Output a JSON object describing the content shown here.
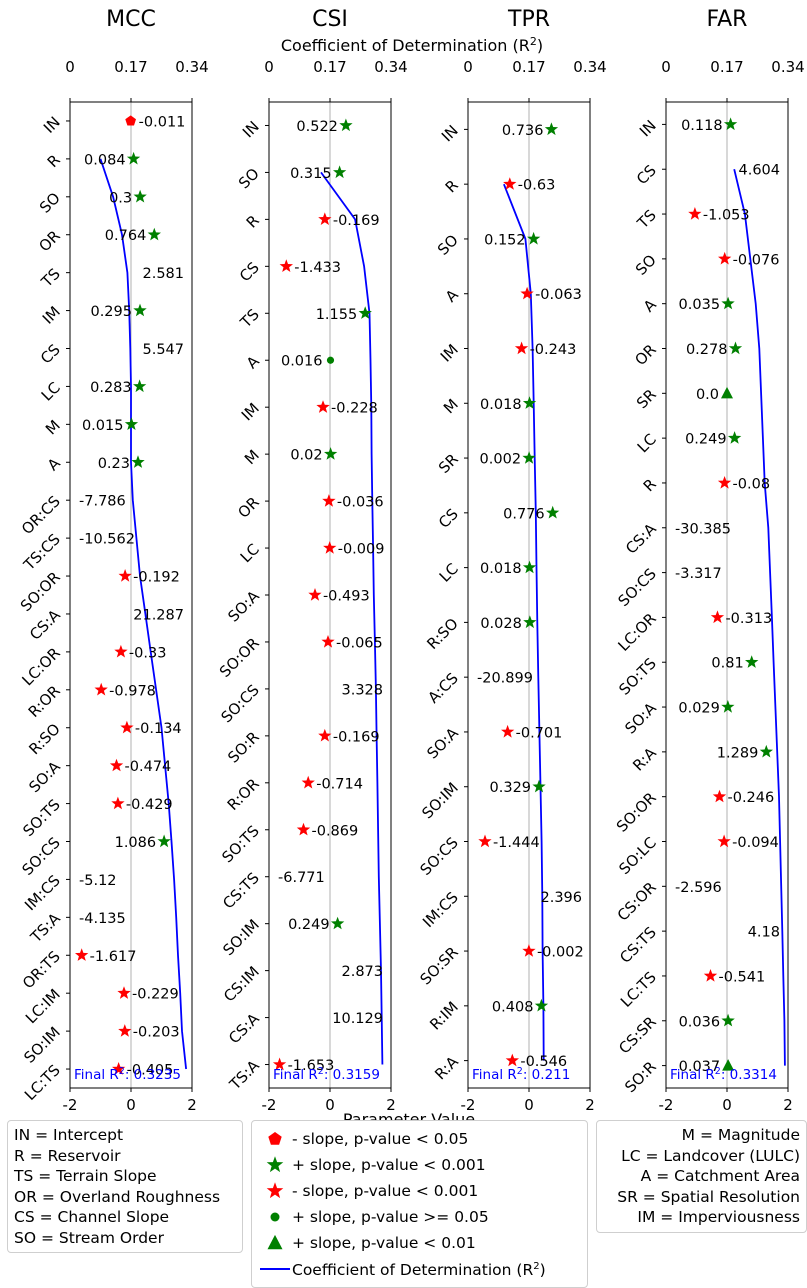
{
  "colors": {
    "line": "#0000ff",
    "pos": "#008000",
    "neg": "#ff0000",
    "grid": "#b0b0b0"
  },
  "chart_data": {
    "type": "scatter",
    "top_axis_label": "Coefficient of Determination (R²)",
    "top_axis_ticks": [
      "0",
      "0.17",
      "0.34"
    ],
    "top_axis_range": [
      0,
      0.34
    ],
    "bottom_axis_label": "Parameter Value",
    "bottom_axis_ticks": [
      "-2",
      "0",
      "2"
    ],
    "bottom_axis_range": [
      -2,
      2
    ],
    "panels": [
      {
        "title": "MCC",
        "final_r2_label": "Final R²: 0.3235",
        "terms": [
          "IN",
          "R",
          "SO",
          "OR",
          "TS",
          "IM",
          "CS",
          "LC",
          "M",
          "A",
          "OR:CS",
          "TS:CS",
          "SO:OR",
          "CS:A",
          "LC:OR",
          "R:OR",
          "R:SO",
          "SO:A",
          "SO:TS",
          "SO:CS",
          "IM:CS",
          "TS:A",
          "OR:TS",
          "LC:IM",
          "SO:IM",
          "LC:TS"
        ],
        "values": [
          -0.011,
          0.084,
          0.3,
          0.764,
          2.581,
          0.295,
          5.547,
          0.283,
          0.015,
          0.23,
          -7.786,
          -10.562,
          -0.192,
          21.287,
          -0.33,
          -0.978,
          -0.134,
          -0.474,
          -0.429,
          1.086,
          -5.12,
          -4.135,
          -1.617,
          -0.229,
          -0.203,
          -0.405
        ],
        "value_labels": [
          "-0.011",
          "0.084",
          "0.3",
          "0.764",
          "2.581",
          "0.295",
          "5.547",
          "0.283",
          "0.015",
          "0.23",
          "-7.786",
          "-10.562",
          "-0.192",
          "21.287",
          "-0.33",
          "-0.978",
          "-0.134",
          "-0.474",
          "-0.429",
          "1.086",
          "-5.12",
          "-4.135",
          "-1.617",
          "-0.229",
          "-0.203",
          "-0.405"
        ],
        "markers": [
          "neg_pentagon",
          "pos_star",
          "pos_star",
          "pos_star",
          "none",
          "pos_star",
          "none",
          "pos_star",
          "pos_star",
          "pos_star",
          "none",
          "none",
          "neg_star",
          "none",
          "neg_star",
          "neg_star",
          "neg_star",
          "neg_star",
          "neg_star",
          "pos_star",
          "none",
          "none",
          "neg_star",
          "neg_star",
          "neg_star",
          "neg_star"
        ],
        "r2": [
          null,
          0.085,
          0.12,
          0.145,
          0.16,
          0.165,
          0.168,
          0.17,
          0.17,
          0.17,
          0.175,
          0.185,
          0.195,
          0.21,
          0.225,
          0.24,
          0.255,
          0.265,
          0.275,
          0.283,
          0.29,
          0.296,
          0.301,
          0.307,
          0.312,
          0.3235
        ]
      },
      {
        "title": "CSI",
        "final_r2_label": "Final R²: 0.3159",
        "terms": [
          "IN",
          "SO",
          "R",
          "CS",
          "TS",
          "A",
          "IM",
          "M",
          "OR",
          "LC",
          "SO:A",
          "SO:OR",
          "SO:CS",
          "SO:R",
          "R:OR",
          "SO:TS",
          "CS:TS",
          "SO:IM",
          "CS:IM",
          "CS:A",
          "TS:A"
        ],
        "values": [
          0.522,
          0.315,
          -0.169,
          -1.433,
          1.155,
          0.016,
          -0.228,
          0.02,
          -0.036,
          -0.009,
          -0.493,
          -0.065,
          3.328,
          -0.169,
          -0.714,
          -0.869,
          -6.771,
          0.249,
          2.873,
          10.129,
          -1.653
        ],
        "value_labels": [
          "0.522",
          "0.315",
          "-0.169",
          "-1.433",
          "1.155",
          "0.016",
          "-0.228",
          "0.02",
          "-0.036",
          "-0.009",
          "-0.493",
          "-0.065",
          "3.328",
          "-0.169",
          "-0.714",
          "-0.869",
          "-6.771",
          "0.249",
          "2.873",
          "10.129",
          "-1.653"
        ],
        "markers": [
          "pos_star",
          "pos_star",
          "neg_star",
          "neg_star",
          "pos_star",
          "pos_circle",
          "neg_star",
          "pos_star",
          "neg_star",
          "neg_star",
          "neg_star",
          "neg_star",
          "none",
          "neg_star",
          "neg_star",
          "neg_star",
          "none",
          "pos_star",
          "none",
          "none",
          "neg_star"
        ],
        "r2": [
          null,
          0.145,
          0.24,
          0.265,
          0.28,
          0.283,
          0.285,
          0.286,
          0.288,
          0.29,
          0.292,
          0.295,
          0.298,
          0.3,
          0.302,
          0.304,
          0.306,
          0.309,
          0.312,
          0.314,
          0.3159
        ]
      },
      {
        "title": "TPR",
        "final_r2_label": "Final R²: 0.211",
        "terms": [
          "IN",
          "R",
          "SO",
          "A",
          "IM",
          "M",
          "SR",
          "CS",
          "LC",
          "R:SO",
          "A:CS",
          "SO:A",
          "SO:IM",
          "SO:CS",
          "IM:CS",
          "SO:SR",
          "R:IM",
          "R:A"
        ],
        "values": [
          0.736,
          -0.63,
          0.152,
          -0.063,
          -0.243,
          0.018,
          0.002,
          0.776,
          0.018,
          0.028,
          -20.899,
          -0.701,
          0.329,
          -1.444,
          2.396,
          -0.002,
          0.408,
          -0.546
        ],
        "value_labels": [
          "0.736",
          "-0.63",
          "0.152",
          "-0.063",
          "-0.243",
          "0.018",
          "0.002",
          "0.776",
          "0.018",
          "0.028",
          "-20.899",
          "-0.701",
          "0.329",
          "-1.444",
          "2.396",
          "-0.002",
          "0.408",
          "-0.546"
        ],
        "markers": [
          "pos_star",
          "neg_star",
          "pos_star",
          "neg_star",
          "neg_star",
          "pos_star",
          "pos_star",
          "pos_star",
          "pos_star",
          "pos_star",
          "none",
          "neg_star",
          "pos_star",
          "neg_star",
          "none",
          "neg_star",
          "pos_star",
          "neg_star"
        ],
        "r2": [
          null,
          0.1,
          0.16,
          0.175,
          0.18,
          0.183,
          0.186,
          0.189,
          0.191,
          0.193,
          0.196,
          0.199,
          0.202,
          0.205,
          0.207,
          0.208,
          0.21,
          0.211
        ]
      },
      {
        "title": "FAR",
        "final_r2_label": "Final R²: 0.3314",
        "terms": [
          "IN",
          "CS",
          "TS",
          "SO",
          "A",
          "OR",
          "SR",
          "LC",
          "R",
          "CS:A",
          "SO:CS",
          "LC:OR",
          "SO:TS",
          "SO:A",
          "R:A",
          "SO:OR",
          "SO:LC",
          "CS:OR",
          "CS:TS",
          "LC:TS",
          "CS:SR",
          "SO:R"
        ],
        "values": [
          0.118,
          4.604,
          -1.053,
          -0.076,
          0.035,
          0.278,
          0.0,
          0.249,
          -0.08,
          -30.385,
          -3.317,
          -0.313,
          0.81,
          0.029,
          1.289,
          -0.246,
          -0.094,
          -2.596,
          4.18,
          -0.541,
          0.036,
          0.037
        ],
        "value_labels": [
          "0.118",
          "4.604",
          "-1.053",
          "-0.076",
          "0.035",
          "0.278",
          "0.0",
          "0.249",
          "-0.08",
          "-30.385",
          "-3.317",
          "-0.313",
          "0.81",
          "0.029",
          "1.289",
          "-0.246",
          "-0.094",
          "-2.596",
          "4.18",
          "-0.541",
          "0.036",
          "0.037"
        ],
        "markers": [
          "pos_star",
          "none",
          "neg_star",
          "neg_star",
          "pos_star",
          "pos_star",
          "pos_triangle",
          "pos_star",
          "neg_star",
          "none",
          "none",
          "neg_star",
          "pos_star",
          "pos_star",
          "pos_star",
          "neg_star",
          "neg_star",
          "none",
          "none",
          "neg_star",
          "pos_star",
          "pos_triangle"
        ],
        "r2": [
          null,
          0.19,
          0.22,
          0.235,
          0.25,
          0.26,
          0.265,
          0.27,
          0.275,
          0.285,
          0.29,
          0.295,
          0.3,
          0.305,
          0.31,
          0.315,
          0.318,
          0.321,
          0.324,
          0.327,
          0.33,
          0.3314
        ]
      }
    ]
  },
  "legend_left": [
    "IN = Intercept",
    "R = Reservoir",
    "TS = Terrain Slope",
    "OR = Overland Roughness",
    "CS = Channel Slope",
    "SO = Stream Order"
  ],
  "legend_center": [
    {
      "marker": "neg_pentagon",
      "label": "- slope, p-value < 0.05"
    },
    {
      "marker": "pos_star",
      "label": "+ slope, p-value < 0.001"
    },
    {
      "marker": "neg_star",
      "label": "- slope, p-value < 0.001"
    },
    {
      "marker": "pos_circle",
      "label": "+ slope, p-value >= 0.05"
    },
    {
      "marker": "pos_triangle",
      "label": "+ slope, p-value < 0.01"
    },
    {
      "marker": "line",
      "label": "Coefficient of Determination (R²)"
    }
  ],
  "legend_right": [
    "M = Magnitude",
    "LC = Landcover (LULC)",
    "A = Catchment Area",
    "SR = Spatial Resolution",
    "IM = Imperviousness"
  ]
}
